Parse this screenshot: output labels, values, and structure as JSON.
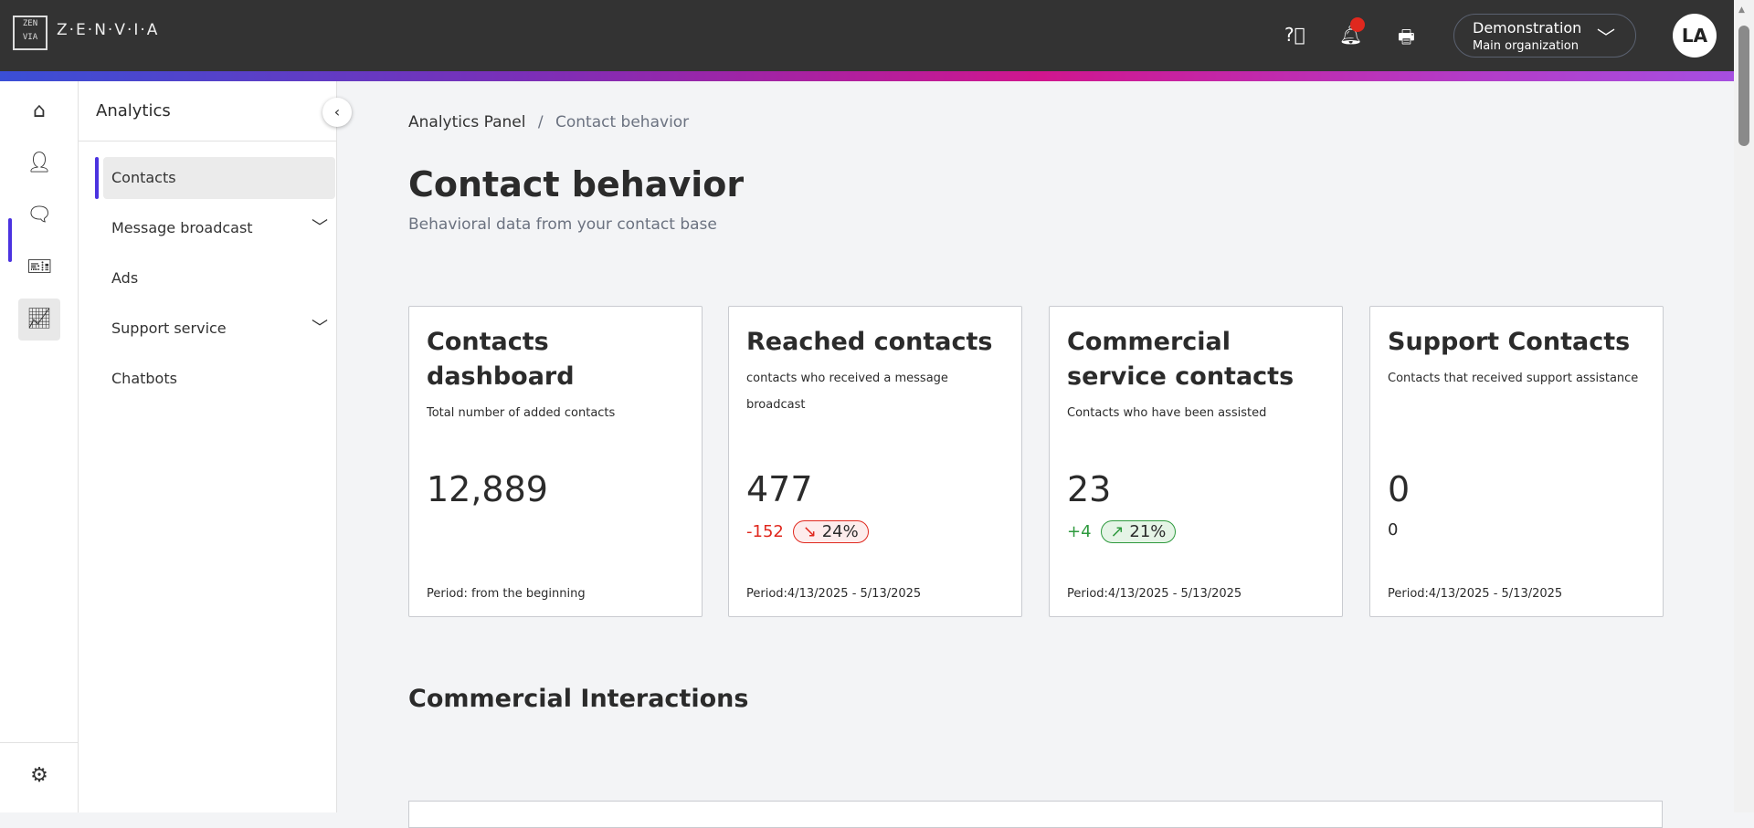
{
  "header": {
    "logo_text": "ZEN VIA",
    "brand": "Z·E·N·V·I·A",
    "icons": [
      "help-icon",
      "bell-icon",
      "inbox-icon"
    ],
    "org": {
      "name": "Demonstration",
      "sub": "Main organization"
    },
    "avatar": "LA",
    "notification_color": "#e0281e"
  },
  "rail": {
    "items": [
      "home-icon",
      "user-icon",
      "chat-icon",
      "ticket-icon",
      "analytics-icon"
    ],
    "settings": "gear-icon"
  },
  "sidebar": {
    "title": "Analytics",
    "items": [
      {
        "label": "Contacts",
        "active": true
      },
      {
        "label": "Message broadcast",
        "expandable": true
      },
      {
        "label": "Ads"
      },
      {
        "label": "Support service",
        "expandable": true
      },
      {
        "label": "Chatbots"
      }
    ]
  },
  "breadcrumb": {
    "parent": "Analytics Panel",
    "sep": "/",
    "current": "Contact behavior"
  },
  "page": {
    "title": "Contact behavior",
    "subtitle": "Behavioral data from your contact base"
  },
  "cards": [
    {
      "title": "Contacts dashboard",
      "desc": "Total number of added contacts",
      "value": "12,889",
      "period": "Period: from the beginning"
    },
    {
      "title": "Reached contacts",
      "desc": "contacts who received a message broadcast",
      "value": "477",
      "delta": "-152",
      "pct": "24%",
      "trend": "down",
      "period": "Period:4/13/2025 - 5/13/2025"
    },
    {
      "title": "Commercial service contacts",
      "desc": "Contacts who have been assisted",
      "value": "23",
      "delta": "+4",
      "pct": "21%",
      "trend": "up",
      "period": "Period:4/13/2025 - 5/13/2025"
    },
    {
      "title": "Support Contacts",
      "desc": "Contacts that received support assistance",
      "value": "0",
      "delta": "0",
      "period": "Period:4/13/2025 - 5/13/2025"
    }
  ],
  "section": {
    "title": "Commercial Interactions"
  },
  "colors": {
    "accent": "#4b33e0",
    "down": "#e0281e",
    "up": "#2e9a3e"
  }
}
